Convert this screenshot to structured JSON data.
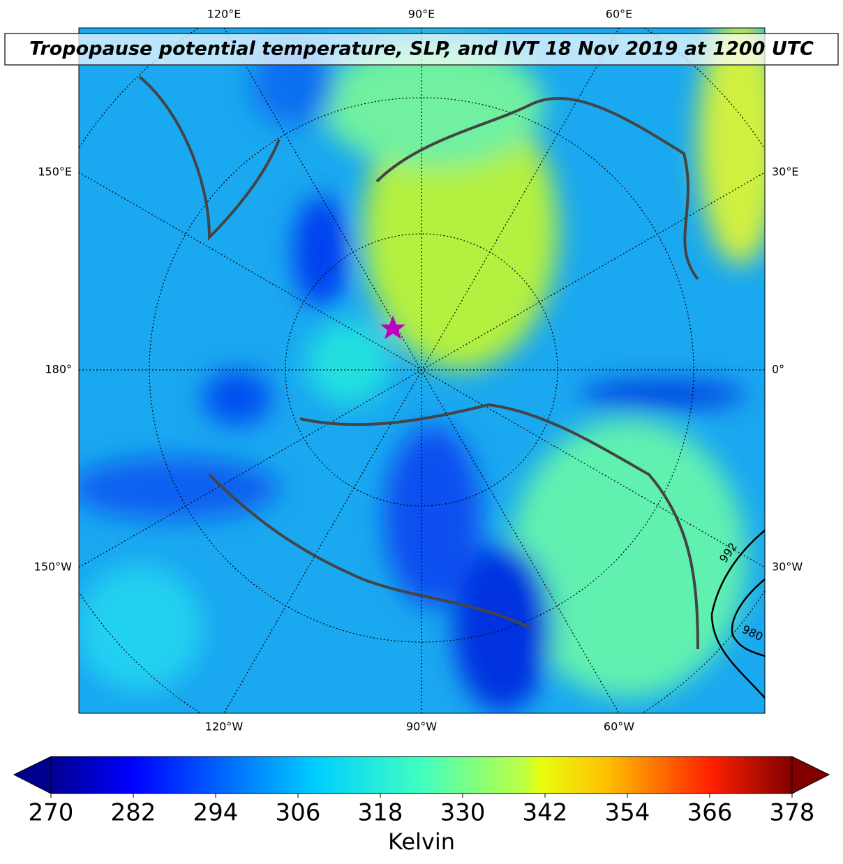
{
  "title": "Tropopause potential temperature, SLP, and IVT 18 Nov 2019 at 1200 UTC",
  "map": {
    "top_labels": [
      "120°E",
      "90°E",
      "60°E"
    ],
    "left_labels": [
      "150°E",
      "180°",
      "150°W"
    ],
    "right_labels": [
      "30°E",
      "0°",
      "30°W"
    ],
    "bottom_labels": [
      "120°W",
      "90°W",
      "60°W"
    ],
    "contour_labels": [
      "992",
      "980"
    ]
  },
  "colorbar": {
    "label": "Kelvin",
    "lim": [
      270,
      378
    ],
    "ticks": [
      270,
      282,
      294,
      306,
      318,
      330,
      342,
      354,
      366,
      378
    ]
  }
}
